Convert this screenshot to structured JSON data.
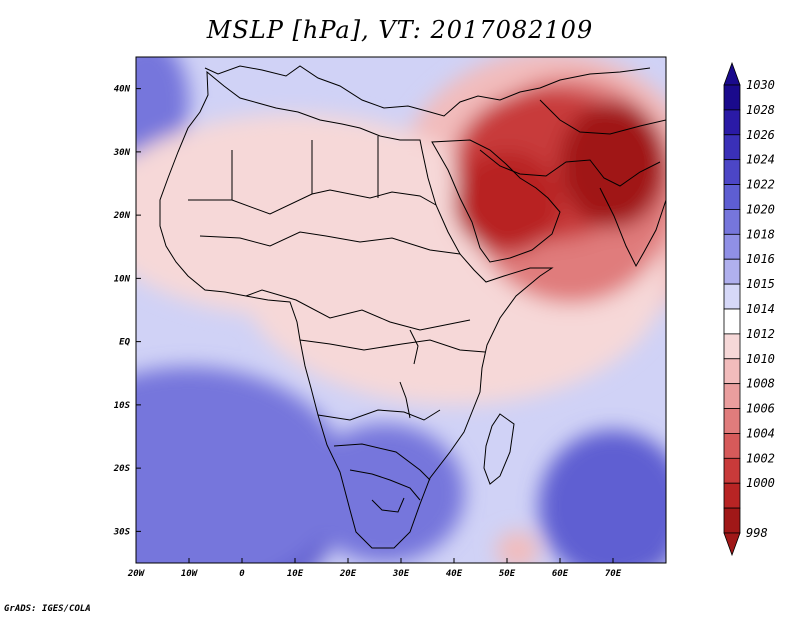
{
  "title": "MSLP [hPa], VT: 2017082109",
  "credit": "GrADS: IGES/COLA",
  "map": {
    "lon_range": [
      -20,
      80
    ],
    "lat_range": [
      -35,
      45
    ],
    "lon_ticks": [
      {
        "value": -20,
        "label": "20W"
      },
      {
        "value": -10,
        "label": "10W"
      },
      {
        "value": 0,
        "label": "0"
      },
      {
        "value": 10,
        "label": "10E"
      },
      {
        "value": 20,
        "label": "20E"
      },
      {
        "value": 30,
        "label": "30E"
      },
      {
        "value": 40,
        "label": "40E"
      },
      {
        "value": 50,
        "label": "50E"
      },
      {
        "value": 60,
        "label": "60E"
      },
      {
        "value": 70,
        "label": "70E"
      }
    ],
    "lat_ticks": [
      {
        "value": 40,
        "label": "40N"
      },
      {
        "value": 30,
        "label": "30N"
      },
      {
        "value": 20,
        "label": "20N"
      },
      {
        "value": 10,
        "label": "10N"
      },
      {
        "value": 0,
        "label": "EQ"
      },
      {
        "value": -10,
        "label": "10S"
      },
      {
        "value": -20,
        "label": "20S"
      },
      {
        "value": -30,
        "label": "30S"
      }
    ]
  },
  "colorbar": {
    "labels": [
      "1030",
      "1028",
      "1026",
      "1024",
      "1022",
      "1020",
      "1018",
      "1016",
      "1015",
      "1014",
      "1012",
      "1010",
      "1008",
      "1006",
      "1004",
      "1002",
      "1000",
      "998"
    ],
    "colors": [
      "#1a0a8c",
      "#2a1aa6",
      "#3a30b8",
      "#4c46c6",
      "#5e5ed2",
      "#7676dc",
      "#9090e6",
      "#b0b0ee",
      "#d6d8f8",
      "#ffffff",
      "#f6d8d8",
      "#f2bcbc",
      "#ea9e9e",
      "#e07c7c",
      "#d65a5a",
      "#c83a3a",
      "#b82424",
      "#a01818"
    ]
  },
  "field": {
    "background_color": "#d0d2f6",
    "blobs": [
      {
        "lon": -12,
        "lat": -32,
        "rx": 18,
        "ry": 9,
        "color": "#1a0a8c"
      },
      {
        "lon": -8,
        "lat": -28,
        "rx": 26,
        "ry": 14,
        "color": "#4c46c6"
      },
      {
        "lon": -10,
        "lat": -22,
        "rx": 30,
        "ry": 18,
        "color": "#7676dc"
      },
      {
        "lon": 74,
        "lat": -31,
        "rx": 8,
        "ry": 6,
        "color": "#1a0a8c"
      },
      {
        "lon": 70,
        "lat": -26,
        "rx": 14,
        "ry": 12,
        "color": "#5e5ed2"
      },
      {
        "lon": 27,
        "lat": -22,
        "rx": 9,
        "ry": 8,
        "color": "#3a30b8"
      },
      {
        "lon": 27,
        "lat": -24,
        "rx": 15,
        "ry": 11,
        "color": "#7676dc"
      },
      {
        "lon": -18,
        "lat": 38,
        "rx": 8,
        "ry": 10,
        "color": "#7676dc"
      },
      {
        "lon": 58,
        "lat": 22,
        "rx": 30,
        "ry": 24,
        "color": "#f2bcbc"
      },
      {
        "lon": 40,
        "lat": 10,
        "rx": 40,
        "ry": 20,
        "color": "#f6d8d8"
      },
      {
        "lon": 10,
        "lat": 20,
        "rx": 38,
        "ry": 16,
        "color": "#f6d8d8"
      },
      {
        "lon": 62,
        "lat": 24,
        "rx": 20,
        "ry": 18,
        "color": "#e07c7c"
      },
      {
        "lon": 58,
        "lat": 28,
        "rx": 18,
        "ry": 12,
        "color": "#c83a3a"
      },
      {
        "lon": 50,
        "lat": 22,
        "rx": 10,
        "ry": 8,
        "color": "#b82424"
      },
      {
        "lon": 70,
        "lat": 28,
        "rx": 10,
        "ry": 10,
        "color": "#a01818"
      },
      {
        "lon": 52,
        "lat": -33,
        "rx": 4,
        "ry": 3,
        "color": "#f2bcbc"
      }
    ]
  }
}
